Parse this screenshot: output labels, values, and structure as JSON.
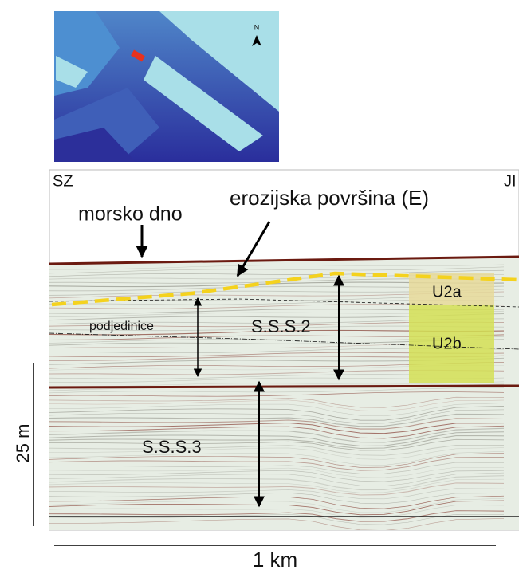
{
  "map": {
    "north_label": "N"
  },
  "profile": {
    "left_label": "SZ",
    "right_label": "JI",
    "seafloor_label": "morsko dno",
    "erosion_label": "erozijska površina (E)",
    "subunits_label": "podjedinice",
    "unit2_label": "S.S.S.2",
    "unit3_label": "S.S.S.3",
    "u2a_label": "U2a",
    "u2b_label": "U2b"
  },
  "scale": {
    "vertical_label": "25 m",
    "horizontal_label": "1 km"
  }
}
